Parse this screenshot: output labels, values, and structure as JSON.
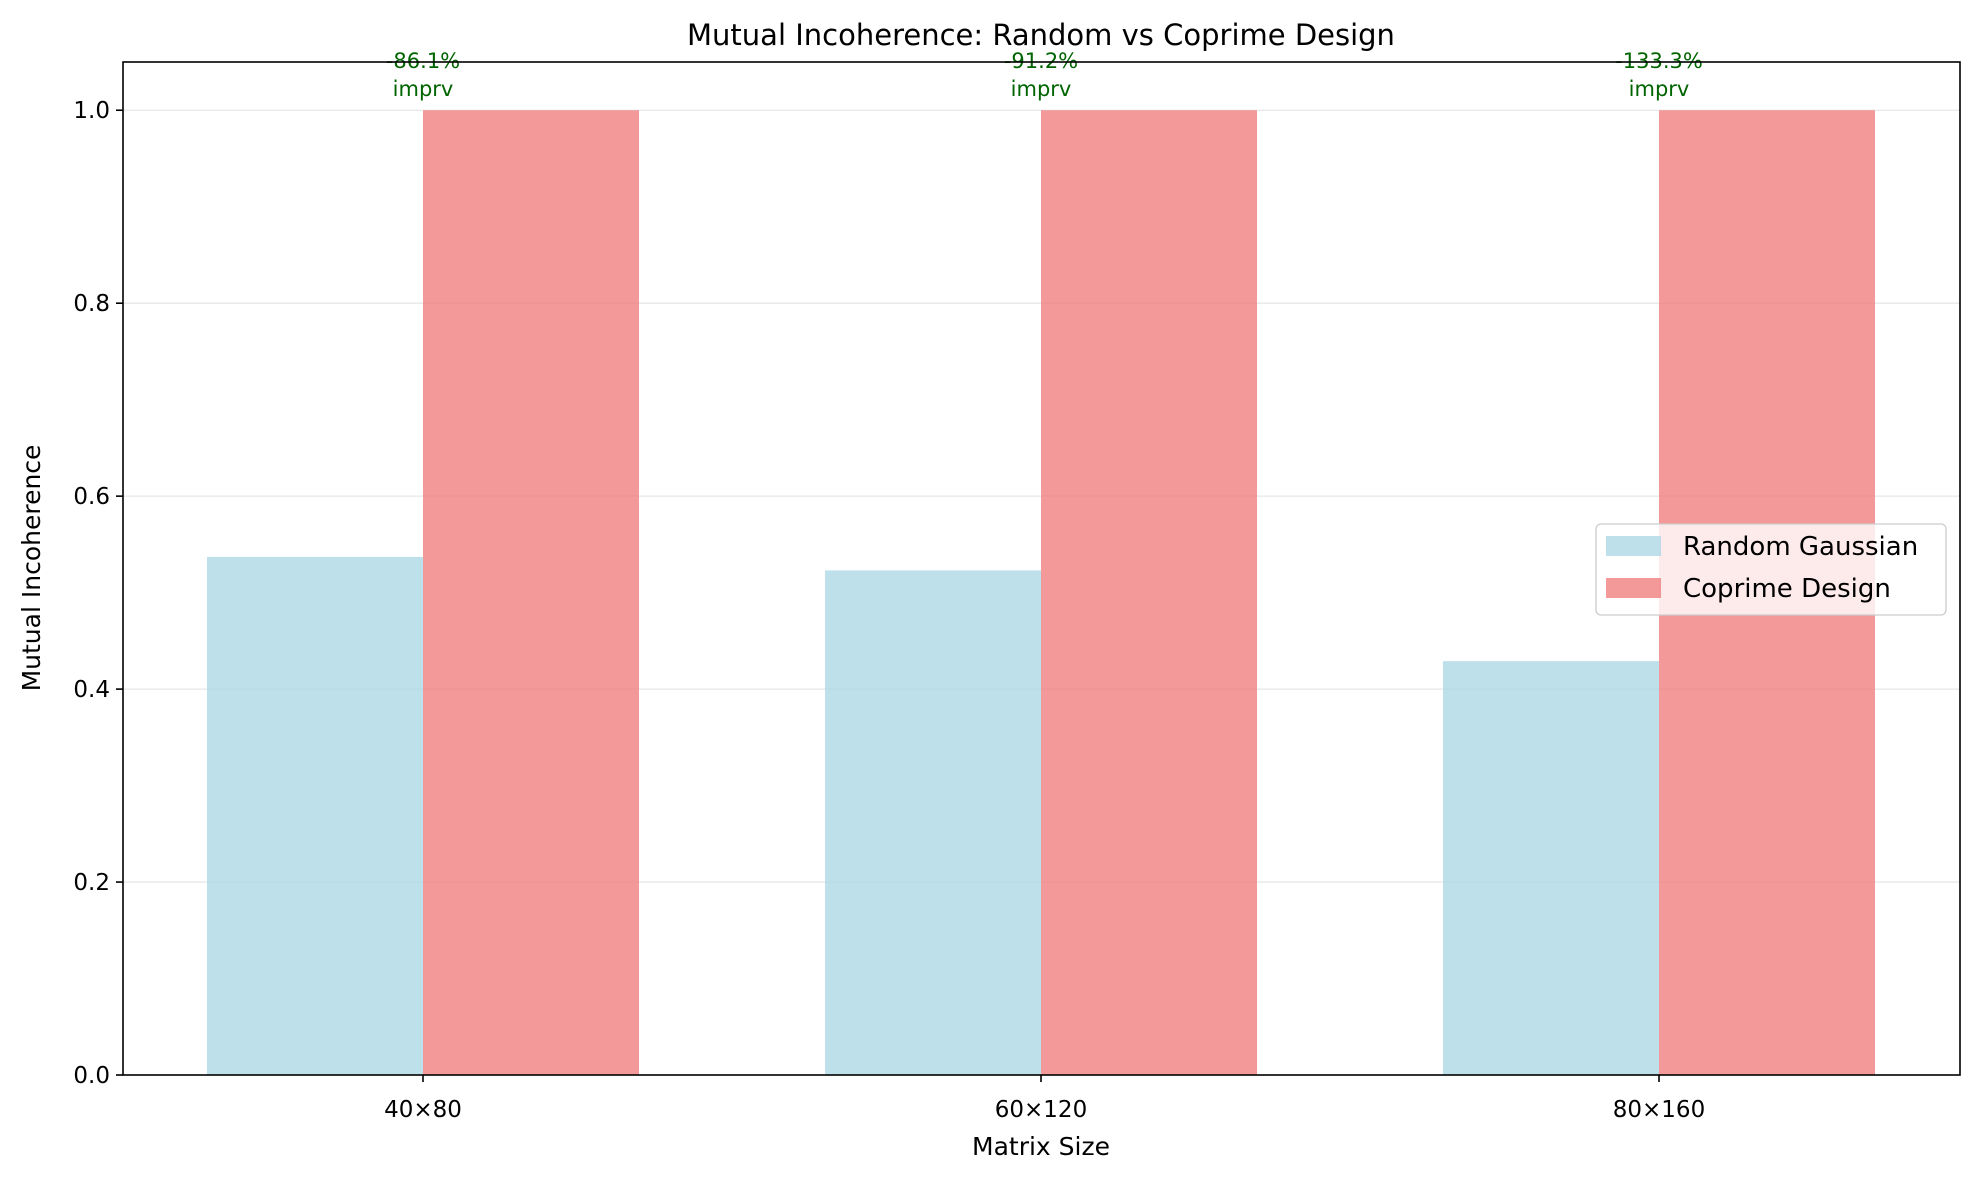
{
  "chart_data": {
    "type": "bar",
    "title": "Mutual Incoherence: Random vs Coprime Design",
    "xlabel": "Matrix Size",
    "ylabel": "Mutual Incoherence",
    "categories": [
      "40×80",
      "60×120",
      "80×160"
    ],
    "series": [
      {
        "name": "Random Gaussian",
        "color": "#add8e6",
        "values": [
          0.537,
          0.523,
          0.429
        ]
      },
      {
        "name": "Coprime Design",
        "color": "#f08080",
        "values": [
          1.0,
          1.0,
          1.0
        ]
      }
    ],
    "annotations": [
      {
        "category": "40×80",
        "line1": "-86.1%",
        "line2": "imprv",
        "y": 1.0
      },
      {
        "category": "60×120",
        "line1": "-91.2%",
        "line2": "imprv",
        "y": 1.0
      },
      {
        "category": "80×160",
        "line1": "-133.3%",
        "line2": "imprv",
        "y": 1.0
      }
    ],
    "annotation_color": "#006400",
    "ylim": [
      0,
      1.05
    ],
    "yticks": [
      "0.0",
      "0.2",
      "0.4",
      "0.6",
      "0.8",
      "1.0"
    ],
    "grid": "y-axis only",
    "legend_position": "center-right"
  }
}
